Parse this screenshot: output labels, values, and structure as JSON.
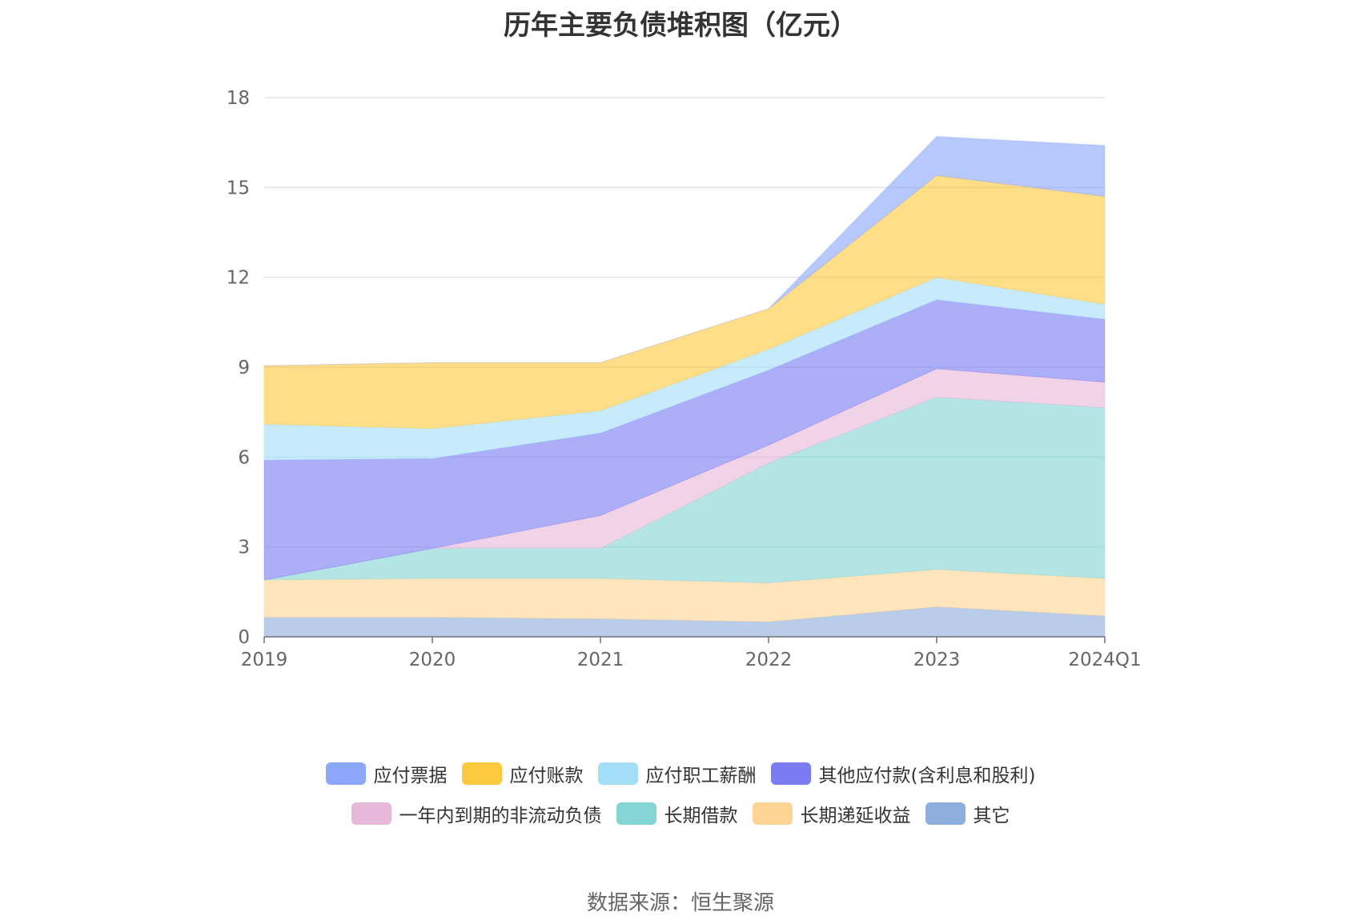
{
  "chart_data": {
    "type": "area",
    "stacked": true,
    "title": "历年主要负债堆积图（亿元）",
    "categories": [
      "2019",
      "2020",
      "2021",
      "2022",
      "2023",
      "2024Q1"
    ],
    "ylim": [
      0,
      18
    ],
    "yticks": [
      0,
      3,
      6,
      9,
      12,
      15,
      18
    ],
    "grid": true,
    "legend_position": "bottom",
    "series": [
      {
        "name": "其它",
        "color": "#8eaedd",
        "values": [
          0.65,
          0.65,
          0.6,
          0.5,
          1.0,
          0.7
        ]
      },
      {
        "name": "长期递延收益",
        "color": "#fed595",
        "values": [
          1.25,
          1.3,
          1.35,
          1.3,
          1.25,
          1.25
        ]
      },
      {
        "name": "长期借款",
        "color": "#84d5d3",
        "values": [
          0.0,
          1.0,
          1.0,
          4.0,
          5.75,
          5.7
        ]
      },
      {
        "name": "一年内到期的非流动负债",
        "color": "#e7b8d9",
        "values": [
          0.0,
          0.0,
          1.1,
          0.6,
          0.95,
          0.85
        ]
      },
      {
        "name": "其他应付款(含利息和股利)",
        "color": "#7b7cf4",
        "values": [
          4.0,
          3.0,
          2.75,
          2.5,
          2.3,
          2.1
        ]
      },
      {
        "name": "应付职工薪酬",
        "color": "#a4dff8",
        "values": [
          1.2,
          1.0,
          0.75,
          0.7,
          0.75,
          0.5
        ]
      },
      {
        "name": "应付账款",
        "color": "#ffc93f",
        "values": [
          1.95,
          2.2,
          1.6,
          1.35,
          3.4,
          3.6
        ]
      },
      {
        "name": "应付票据",
        "color": "#8ba6fb",
        "values": [
          0.0,
          0.0,
          0.0,
          0.0,
          1.3,
          1.7
        ]
      }
    ]
  },
  "legend": {
    "row1": [
      {
        "label": "应付票据",
        "color": "#8ba6fb"
      },
      {
        "label": "应付账款",
        "color": "#ffc93f"
      },
      {
        "label": "应付职工薪酬",
        "color": "#a4dff8"
      },
      {
        "label": "其他应付款(含利息和股利)",
        "color": "#7b7cf4"
      }
    ],
    "row2": [
      {
        "label": "一年内到期的非流动负债",
        "color": "#e7b8d9"
      },
      {
        "label": "长期借款",
        "color": "#84d5d3"
      },
      {
        "label": "长期递延收益",
        "color": "#fed595"
      },
      {
        "label": "其它",
        "color": "#8eaedd"
      }
    ]
  },
  "source": "数据来源：恒生聚源"
}
